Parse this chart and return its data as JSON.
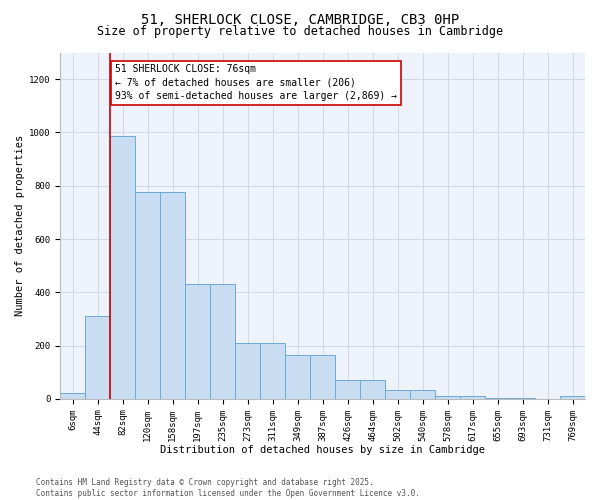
{
  "title_line1": "51, SHERLOCK CLOSE, CAMBRIDGE, CB3 0HP",
  "title_line2": "Size of property relative to detached houses in Cambridge",
  "xlabel": "Distribution of detached houses by size in Cambridge",
  "ylabel": "Number of detached properties",
  "categories": [
    "6sqm",
    "44sqm",
    "82sqm",
    "120sqm",
    "158sqm",
    "197sqm",
    "235sqm",
    "273sqm",
    "311sqm",
    "349sqm",
    "387sqm",
    "426sqm",
    "464sqm",
    "502sqm",
    "540sqm",
    "578sqm",
    "617sqm",
    "655sqm",
    "693sqm",
    "731sqm",
    "769sqm"
  ],
  "bar_heights": [
    22,
    310,
    985,
    775,
    775,
    430,
    430,
    210,
    210,
    165,
    165,
    70,
    70,
    35,
    35,
    12,
    12,
    5,
    5,
    0,
    10
  ],
  "bar_color": "#c8ddf2",
  "bar_edge_color": "#6aaad4",
  "annotation_box_text": "51 SHERLOCK CLOSE: 76sqm\n← 7% of detached houses are smaller (206)\n93% of semi-detached houses are larger (2,869) →",
  "vline_color": "#cc0000",
  "ylim": [
    0,
    1300
  ],
  "yticks": [
    0,
    200,
    400,
    600,
    800,
    1000,
    1200
  ],
  "grid_color": "#d0d8e8",
  "background_color": "#eef2fa",
  "footer_line1": "Contains HM Land Registry data © Crown copyright and database right 2025.",
  "footer_line2": "Contains public sector information licensed under the Open Government Licence v3.0.",
  "title_fontsize": 10,
  "subtitle_fontsize": 8.5,
  "annotation_fontsize": 7,
  "axis_label_fontsize": 7.5,
  "tick_fontsize": 6.5,
  "footer_fontsize": 5.5
}
